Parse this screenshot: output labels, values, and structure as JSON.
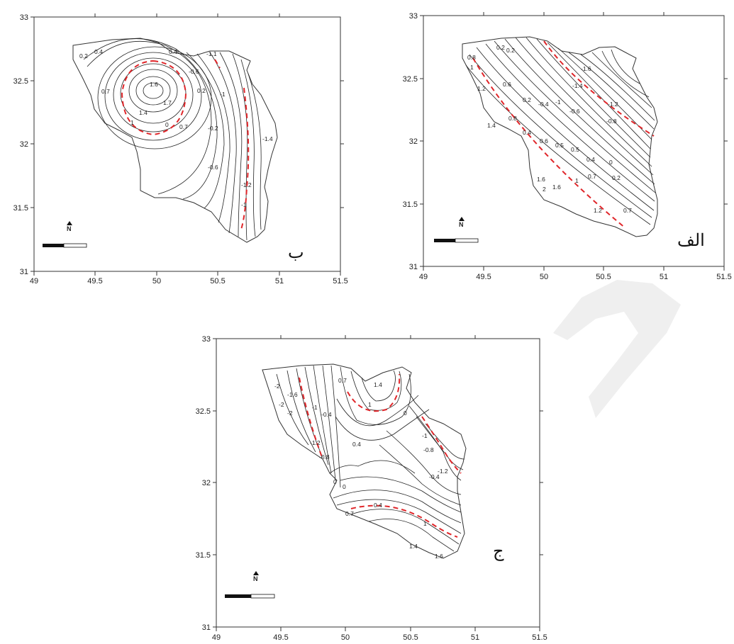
{
  "panels": [
    {
      "id": "panel-b",
      "letter": "ب",
      "x_ticks": [
        "49",
        "49.5",
        "50",
        "50.5",
        "51",
        "51.5"
      ],
      "y_ticks": [
        "31",
        "31.5",
        "32",
        "32.5",
        "33"
      ],
      "contour_labels": [
        "0.2",
        "0.4",
        "0.7",
        "1",
        "1.4",
        "1.6",
        "1.7",
        "0.4",
        "0.2",
        "0",
        "-0.2",
        "-0.6",
        "-1",
        "-1.2",
        "-1.4",
        "-1.1",
        "-0.6",
        "-1",
        "0.7"
      ],
      "north_symbol": "N"
    },
    {
      "id": "panel-alef",
      "letter": "الف",
      "x_ticks": [
        "49",
        "49.5",
        "50",
        "50.5",
        "51",
        "51.5"
      ],
      "y_ticks": [
        "31",
        "31.5",
        "32",
        "32.5",
        "33"
      ],
      "contour_labels": [
        "0.8",
        "1",
        "0.2",
        "0.2",
        "-1.6",
        "-1.4",
        "-1.2",
        "-1",
        "-0.6",
        "-0.8",
        "1.2",
        "0.6",
        "0.2",
        "-0.4",
        "1.4",
        "0.8",
        "0.4",
        "0.6",
        "0.5",
        "0.5",
        "0",
        "0.4",
        "0.2",
        "0.7",
        "1",
        "1.6",
        "1.6",
        "2",
        "1.2",
        "0.7"
      ],
      "north_symbol": "N"
    },
    {
      "id": "panel-jim",
      "letter": "ج",
      "x_ticks": [
        "49",
        "49.5",
        "50",
        "50.5",
        "51",
        "51.5"
      ],
      "y_ticks": [
        "31",
        "31.5",
        "32",
        "32.5",
        "33"
      ],
      "contour_labels": [
        "-2",
        "-1.6",
        "-2",
        "-2",
        "-1",
        "-0.4",
        "-1.2",
        "-0.8",
        "0.7",
        "1.4",
        "1",
        "0",
        "-1",
        "-0.8",
        "-1.2",
        "0.4",
        "-0.4",
        "0",
        "0",
        "0.4",
        "0.7",
        "1",
        "1.4",
        "1.6"
      ],
      "north_symbol": "N"
    }
  ]
}
